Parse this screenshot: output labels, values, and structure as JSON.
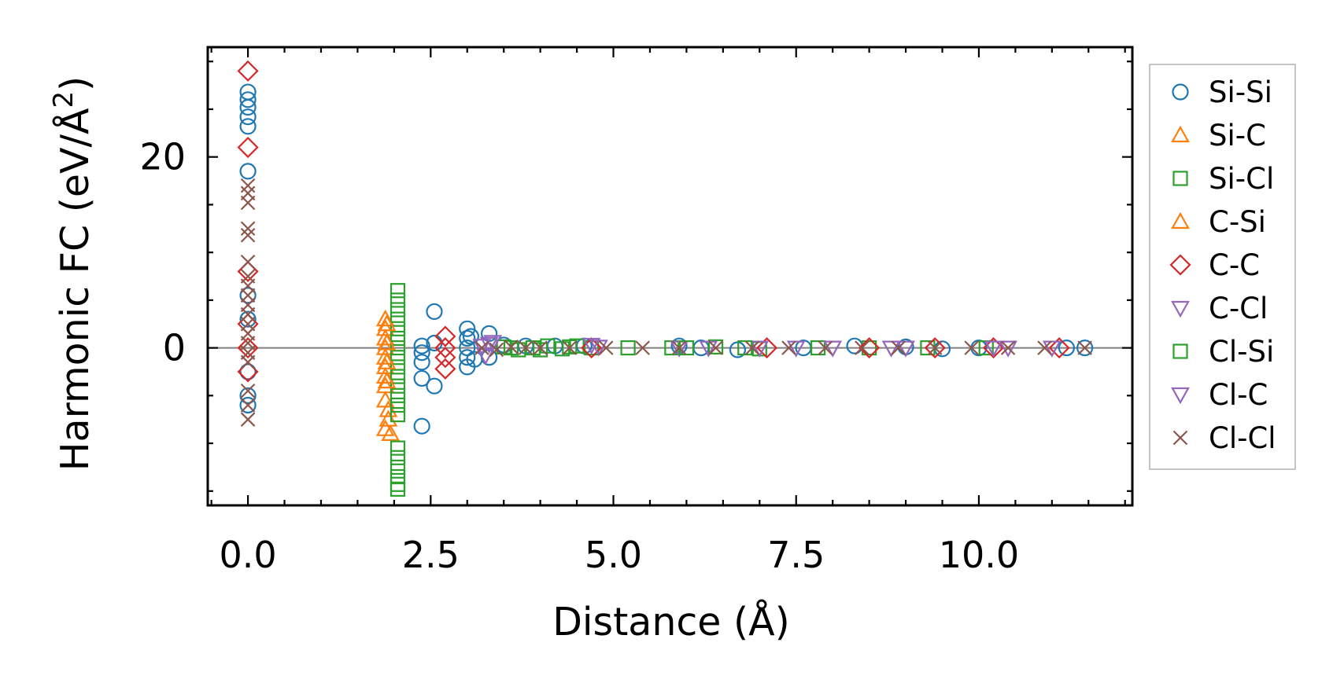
{
  "chart_data": {
    "type": "scatter",
    "title": "",
    "xlabel": "Distance (Å)",
    "ylabel": "Harmonic FC (eV/Å",
    "ylabel_sup": "2",
    "ylabel_close": ")",
    "xlim": [
      -0.55,
      12.1
    ],
    "ylim": [
      -16.5,
      31.5
    ],
    "xticks": [
      0.0,
      2.5,
      5.0,
      7.5,
      10.0
    ],
    "xtick_labels": [
      "0.0",
      "2.5",
      "5.0",
      "7.5",
      "10.0"
    ],
    "yticks": [
      0,
      20
    ],
    "ytick_labels": [
      "0",
      "20"
    ],
    "reference_line_y": 0,
    "legend_position": "outside-right",
    "series": [
      {
        "name": "Si-Si",
        "marker": "circle",
        "color": "#1f77b4",
        "points": [
          [
            0.0,
            26.8
          ],
          [
            0.0,
            26.0
          ],
          [
            0.0,
            25.2
          ],
          [
            0.0,
            24.2
          ],
          [
            0.0,
            23.2
          ],
          [
            0.0,
            18.5
          ],
          [
            0.0,
            5.5
          ],
          [
            0.0,
            3.0
          ],
          [
            0.0,
            -2.5
          ],
          [
            0.0,
            -5.0
          ],
          [
            0.0,
            -6.0
          ],
          [
            2.38,
            0.2
          ],
          [
            2.38,
            -0.5
          ],
          [
            2.38,
            -1.5
          ],
          [
            2.38,
            -3.2
          ],
          [
            2.38,
            -8.2
          ],
          [
            2.55,
            3.8
          ],
          [
            2.55,
            0.5
          ],
          [
            2.55,
            -4.0
          ],
          [
            3.0,
            2.0
          ],
          [
            3.0,
            1.0
          ],
          [
            3.0,
            0.0
          ],
          [
            3.0,
            -1.0
          ],
          [
            3.0,
            -2.0
          ],
          [
            3.05,
            1.2
          ],
          [
            3.1,
            -1.2
          ],
          [
            3.3,
            1.5
          ],
          [
            3.3,
            -1.0
          ],
          [
            3.5,
            0.3
          ],
          [
            3.8,
            0.2
          ],
          [
            4.2,
            0.2
          ],
          [
            4.6,
            0.2
          ],
          [
            5.9,
            0.2
          ],
          [
            6.2,
            0.0
          ],
          [
            6.7,
            -0.2
          ],
          [
            7.6,
            0.0
          ],
          [
            8.3,
            0.2
          ],
          [
            9.0,
            0.1
          ],
          [
            9.5,
            -0.1
          ],
          [
            10.0,
            0.0
          ],
          [
            11.2,
            0.0
          ],
          [
            11.45,
            0.0
          ]
        ]
      },
      {
        "name": "Si-C",
        "marker": "triangle-up",
        "color": "#ff7f0e",
        "points": [
          [
            1.88,
            3.0
          ],
          [
            1.88,
            2.0
          ],
          [
            1.88,
            1.0
          ],
          [
            1.88,
            0.0
          ],
          [
            1.88,
            -1.0
          ],
          [
            1.88,
            -2.0
          ],
          [
            1.88,
            -3.0
          ],
          [
            1.88,
            -4.0
          ],
          [
            1.88,
            -5.5
          ],
          [
            1.88,
            -8.5
          ],
          [
            1.92,
            -7.5
          ],
          [
            1.92,
            -6.5
          ],
          [
            1.95,
            -9.0
          ]
        ]
      },
      {
        "name": "Si-Cl",
        "marker": "square",
        "color": "#2ca02c",
        "points": [
          [
            2.05,
            6.0
          ],
          [
            2.05,
            5.0
          ],
          [
            2.05,
            4.0
          ],
          [
            2.05,
            3.0
          ],
          [
            2.05,
            2.0
          ],
          [
            2.05,
            1.0
          ],
          [
            2.05,
            0.0
          ],
          [
            2.05,
            -1.0
          ],
          [
            2.05,
            -2.0
          ],
          [
            2.05,
            -3.0
          ],
          [
            2.05,
            -4.0
          ],
          [
            2.05,
            -5.0
          ],
          [
            2.05,
            -6.0
          ],
          [
            2.05,
            -7.0
          ],
          [
            2.05,
            -10.5
          ],
          [
            2.05,
            -11.5
          ],
          [
            2.05,
            -12.5
          ],
          [
            2.05,
            -13.5
          ],
          [
            2.05,
            -14.3
          ],
          [
            2.05,
            -14.8
          ],
          [
            3.5,
            0.1
          ],
          [
            3.7,
            -0.2
          ],
          [
            3.9,
            0.0
          ],
          [
            4.1,
            0.2
          ],
          [
            4.3,
            -0.1
          ],
          [
            4.5,
            0.2
          ],
          [
            4.7,
            0.0
          ],
          [
            5.2,
            0.0
          ],
          [
            5.8,
            0.0
          ],
          [
            6.4,
            0.1
          ],
          [
            7.0,
            -0.1
          ],
          [
            7.8,
            0.0
          ],
          [
            8.5,
            0.0
          ],
          [
            9.3,
            0.0
          ],
          [
            10.1,
            0.0
          ]
        ]
      },
      {
        "name": "C-Si",
        "marker": "triangle-up",
        "color": "#ff7f0e",
        "points": [
          [
            1.9,
            2.5
          ],
          [
            1.9,
            0.5
          ],
          [
            1.9,
            -1.5
          ],
          [
            1.9,
            -3.5
          ]
        ]
      },
      {
        "name": "C-C",
        "marker": "diamond",
        "color": "#d62728",
        "points": [
          [
            0.0,
            29.0
          ],
          [
            0.0,
            21.0
          ],
          [
            0.0,
            8.0
          ],
          [
            0.0,
            2.5
          ],
          [
            0.0,
            0.0
          ],
          [
            0.0,
            -2.5
          ],
          [
            2.7,
            1.2
          ],
          [
            2.7,
            0.0
          ],
          [
            2.7,
            -1.0
          ],
          [
            2.7,
            -2.2
          ],
          [
            4.7,
            0.0
          ],
          [
            7.1,
            0.0
          ],
          [
            8.5,
            0.0
          ],
          [
            9.4,
            0.0
          ],
          [
            10.2,
            0.0
          ],
          [
            11.1,
            0.0
          ]
        ]
      },
      {
        "name": "C-Cl",
        "marker": "triangle-down",
        "color": "#9467bd",
        "points": [
          [
            3.2,
            0.2
          ],
          [
            3.25,
            -0.8
          ],
          [
            3.35,
            0.6
          ],
          [
            4.7,
            0.3
          ],
          [
            5.9,
            0.0
          ],
          [
            7.0,
            0.0
          ],
          [
            8.0,
            0.0
          ],
          [
            9.0,
            0.0
          ],
          [
            10.2,
            0.0
          ],
          [
            11.0,
            0.0
          ]
        ]
      },
      {
        "name": "Cl-Si",
        "marker": "square",
        "color": "#2ca02c",
        "points": [
          [
            3.6,
            0.0
          ],
          [
            4.0,
            -0.2
          ],
          [
            4.4,
            0.1
          ],
          [
            6.0,
            0.0
          ],
          [
            6.8,
            0.0
          ]
        ]
      },
      {
        "name": "Cl-C",
        "marker": "triangle-down",
        "color": "#9467bd",
        "points": [
          [
            3.3,
            0.4
          ],
          [
            4.8,
            0.1
          ],
          [
            6.3,
            0.0
          ],
          [
            7.5,
            0.0
          ],
          [
            8.8,
            0.0
          ],
          [
            10.4,
            0.0
          ]
        ]
      },
      {
        "name": "Cl-Cl",
        "marker": "x",
        "color": "#8c564b",
        "points": [
          [
            0.0,
            17.0
          ],
          [
            0.0,
            16.2
          ],
          [
            0.0,
            15.2
          ],
          [
            0.0,
            12.5
          ],
          [
            0.0,
            11.8
          ],
          [
            0.0,
            9.0
          ],
          [
            0.0,
            7.5
          ],
          [
            0.0,
            6.5
          ],
          [
            0.0,
            5.5
          ],
          [
            0.0,
            4.5
          ],
          [
            0.0,
            3.5
          ],
          [
            0.0,
            2.5
          ],
          [
            0.0,
            1.5
          ],
          [
            0.0,
            0.5
          ],
          [
            0.0,
            -0.5
          ],
          [
            0.0,
            -1.5
          ],
          [
            0.0,
            -4.5
          ],
          [
            0.0,
            -6.0
          ],
          [
            0.0,
            -7.5
          ],
          [
            3.2,
            0.0
          ],
          [
            3.4,
            -0.2
          ],
          [
            3.6,
            0.1
          ],
          [
            3.8,
            0.0
          ],
          [
            4.0,
            0.0
          ],
          [
            4.4,
            0.0
          ],
          [
            4.9,
            0.0
          ],
          [
            5.4,
            0.0
          ],
          [
            5.9,
            0.0
          ],
          [
            6.4,
            0.0
          ],
          [
            6.9,
            0.0
          ],
          [
            7.4,
            0.0
          ],
          [
            7.9,
            0.0
          ],
          [
            8.4,
            0.0
          ],
          [
            8.9,
            0.0
          ],
          [
            9.4,
            0.0
          ],
          [
            9.9,
            0.0
          ],
          [
            10.4,
            0.0
          ],
          [
            10.9,
            0.0
          ],
          [
            11.45,
            0.0
          ]
        ]
      }
    ]
  }
}
